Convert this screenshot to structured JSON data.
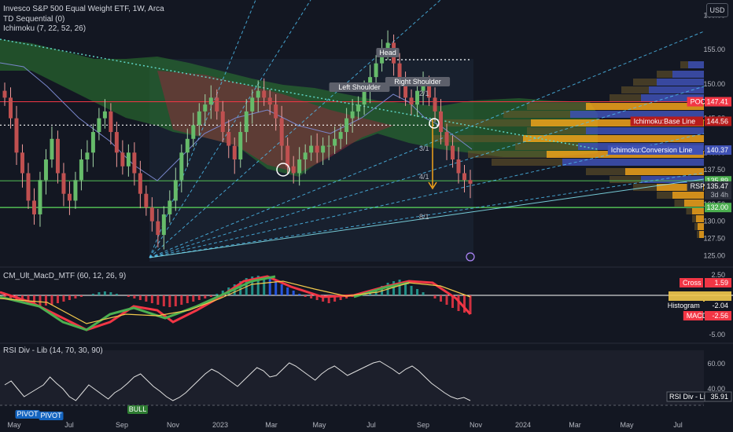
{
  "header": {
    "title": "Invesco S&P 500 Equal Weight ETF, 1W, Arca",
    "indicator1": "TD Sequential (0)",
    "indicator2": "Ichimoku (7, 22, 52, 26)",
    "currency": "USD"
  },
  "price_axis": {
    "ticks": [
      "160.00",
      "155.00",
      "150.00",
      "145.00",
      "140.00",
      "137.50",
      "135.00",
      "132.50",
      "130.00",
      "127.50",
      "125.00"
    ],
    "labels": [
      {
        "text": "POC",
        "value": "147.41",
        "color": "#f23645"
      },
      {
        "text": "Ichimoku:Base Line",
        "value": "144.56",
        "color": "#b71c1c"
      },
      {
        "text": "Ichimoku:Conversion Line",
        "value": "140.37",
        "color": "#3f51b5"
      },
      {
        "text": "",
        "value": "135.89",
        "color": "#4caf50"
      },
      {
        "text": "RSP",
        "value": "135.47",
        "color": "#2a2e39",
        "sub": "3d 4h"
      },
      {
        "text": "",
        "value": "132.00",
        "color": "#4caf50"
      }
    ]
  },
  "annotations": {
    "head": "Head",
    "left_shoulder": "Left Shoulder",
    "right_shoulder": "Right Shoulder",
    "fan_labels": [
      "2/1",
      "3/1",
      "4/1",
      "8/1"
    ]
  },
  "macd": {
    "title": "CM_Ult_MacD_MTF (60, 12, 26, 9)",
    "ticks": [
      "2.50",
      "-5.00"
    ],
    "labels": [
      {
        "text": "Cross",
        "value": "1.59",
        "color": "#f23645"
      },
      {
        "text": "Histogram",
        "value": "-2.04",
        "color": "#131722"
      },
      {
        "text": "MACD",
        "value": "-2.56",
        "color": "#f23645"
      }
    ]
  },
  "rsi": {
    "title": "RSI Div - Lib (14, 70, 30, 90)",
    "ticks": [
      "60.00",
      "40.00"
    ],
    "value_label": "RSI Div - Lib",
    "value": "35.91",
    "badges": [
      "PIVOT",
      "PIVOT",
      "BULL"
    ]
  },
  "time_axis": [
    "May",
    "Jul",
    "Sep",
    "Nov",
    "2023",
    "Mar",
    "May",
    "Jul",
    "Sep",
    "Nov",
    "2024",
    "Mar",
    "May",
    "Jul"
  ],
  "chart_data": {
    "type": "candlestick",
    "symbol": "RSP",
    "interval": "1W",
    "ylim": [
      124,
      162
    ],
    "close_approx": [
      148,
      145,
      140,
      137,
      133,
      131,
      136,
      139,
      142,
      137,
      134,
      133,
      136,
      139,
      140,
      143,
      145,
      146,
      143,
      140,
      138,
      140,
      137,
      134,
      132,
      130,
      128,
      131,
      133,
      136,
      140,
      142,
      144,
      146,
      147,
      148,
      146,
      143,
      141,
      139,
      143,
      146,
      148,
      149,
      148,
      147,
      145,
      141,
      138,
      137,
      139,
      140,
      141,
      140,
      141,
      141,
      142,
      143,
      145,
      146,
      147,
      149,
      151,
      153,
      155,
      156,
      153,
      150,
      148,
      147,
      149,
      150,
      148,
      146,
      143,
      141,
      139,
      137,
      136,
      135.47
    ],
    "levels": {
      "poc": 147.41,
      "base_line": 144.56,
      "conversion_line": 140.37,
      "support_1": 135.89,
      "support_2": 132.0
    }
  }
}
